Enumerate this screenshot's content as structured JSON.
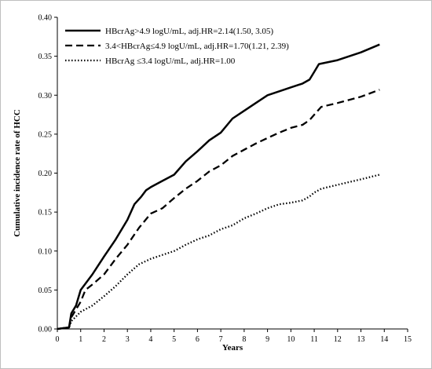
{
  "chart_data": {
    "type": "line",
    "title": "",
    "xlabel": "Years",
    "ylabel": "Cumulative incidence rate of HCC",
    "xlim": [
      0,
      15
    ],
    "ylim": [
      0,
      0.4
    ],
    "x_ticks": [
      "0",
      "1",
      "2",
      "3",
      "4",
      "5",
      "6",
      "7",
      "8",
      "9",
      "10",
      "11",
      "12",
      "13",
      "14",
      "15"
    ],
    "y_ticks": [
      "0.00",
      "0.05",
      "0.10",
      "0.15",
      "0.20",
      "0.25",
      "0.30",
      "0.35",
      "0.40"
    ],
    "grid": false,
    "legend_position": "top-left",
    "series": [
      {
        "name": "HBcrAg>4.9  logU/mL, adj.HR=2.14(1.50, 3.05)",
        "style": "solid",
        "x": [
          0,
          0.5,
          0.6,
          0.8,
          1.0,
          1.2,
          1.5,
          2.0,
          2.5,
          3.0,
          3.3,
          3.6,
          3.8,
          4.0,
          4.5,
          5.0,
          5.5,
          6.0,
          6.5,
          7.0,
          7.5,
          8.0,
          8.5,
          9.0,
          9.5,
          10.0,
          10.5,
          10.8,
          11.0,
          11.2,
          12.0,
          13.0,
          13.8
        ],
        "y": [
          0,
          0.002,
          0.02,
          0.03,
          0.05,
          0.058,
          0.07,
          0.093,
          0.115,
          0.14,
          0.16,
          0.17,
          0.178,
          0.182,
          0.19,
          0.198,
          0.215,
          0.228,
          0.242,
          0.252,
          0.27,
          0.28,
          0.29,
          0.3,
          0.305,
          0.31,
          0.315,
          0.32,
          0.33,
          0.34,
          0.345,
          0.355,
          0.365
        ]
      },
      {
        "name": "3.4<HBcrAg≤4.9 logU/mL, adj.HR=1.70(1.21, 2.39)",
        "style": "dashed",
        "x": [
          0,
          0.5,
          0.6,
          0.8,
          1.0,
          1.2,
          1.5,
          2.0,
          2.5,
          3.0,
          3.5,
          4.0,
          4.5,
          5.0,
          5.5,
          6.0,
          6.5,
          7.0,
          7.5,
          8.0,
          8.5,
          9.0,
          9.5,
          10.0,
          10.5,
          10.8,
          11.0,
          11.3,
          12.0,
          13.0,
          13.8
        ],
        "y": [
          0,
          0.002,
          0.015,
          0.025,
          0.035,
          0.05,
          0.057,
          0.07,
          0.09,
          0.108,
          0.13,
          0.148,
          0.155,
          0.168,
          0.18,
          0.19,
          0.202,
          0.21,
          0.222,
          0.23,
          0.238,
          0.245,
          0.252,
          0.258,
          0.262,
          0.268,
          0.275,
          0.285,
          0.29,
          0.298,
          0.307
        ]
      },
      {
        "name": "HBcrAg ≤3.4 logU/mL, adj.HR=1.00",
        "style": "dotted",
        "x": [
          0,
          0.5,
          0.6,
          1.0,
          1.5,
          2.0,
          2.5,
          3.0,
          3.5,
          4.0,
          4.5,
          5.0,
          5.5,
          6.0,
          6.5,
          7.0,
          7.5,
          8.0,
          8.5,
          9.0,
          9.5,
          10.0,
          10.5,
          10.8,
          11.0,
          11.3,
          12.0,
          13.0,
          13.8
        ],
        "y": [
          0,
          0.002,
          0.01,
          0.022,
          0.03,
          0.042,
          0.055,
          0.07,
          0.083,
          0.09,
          0.095,
          0.1,
          0.108,
          0.115,
          0.12,
          0.128,
          0.133,
          0.142,
          0.148,
          0.155,
          0.16,
          0.162,
          0.165,
          0.17,
          0.175,
          0.18,
          0.185,
          0.192,
          0.198
        ]
      }
    ]
  }
}
